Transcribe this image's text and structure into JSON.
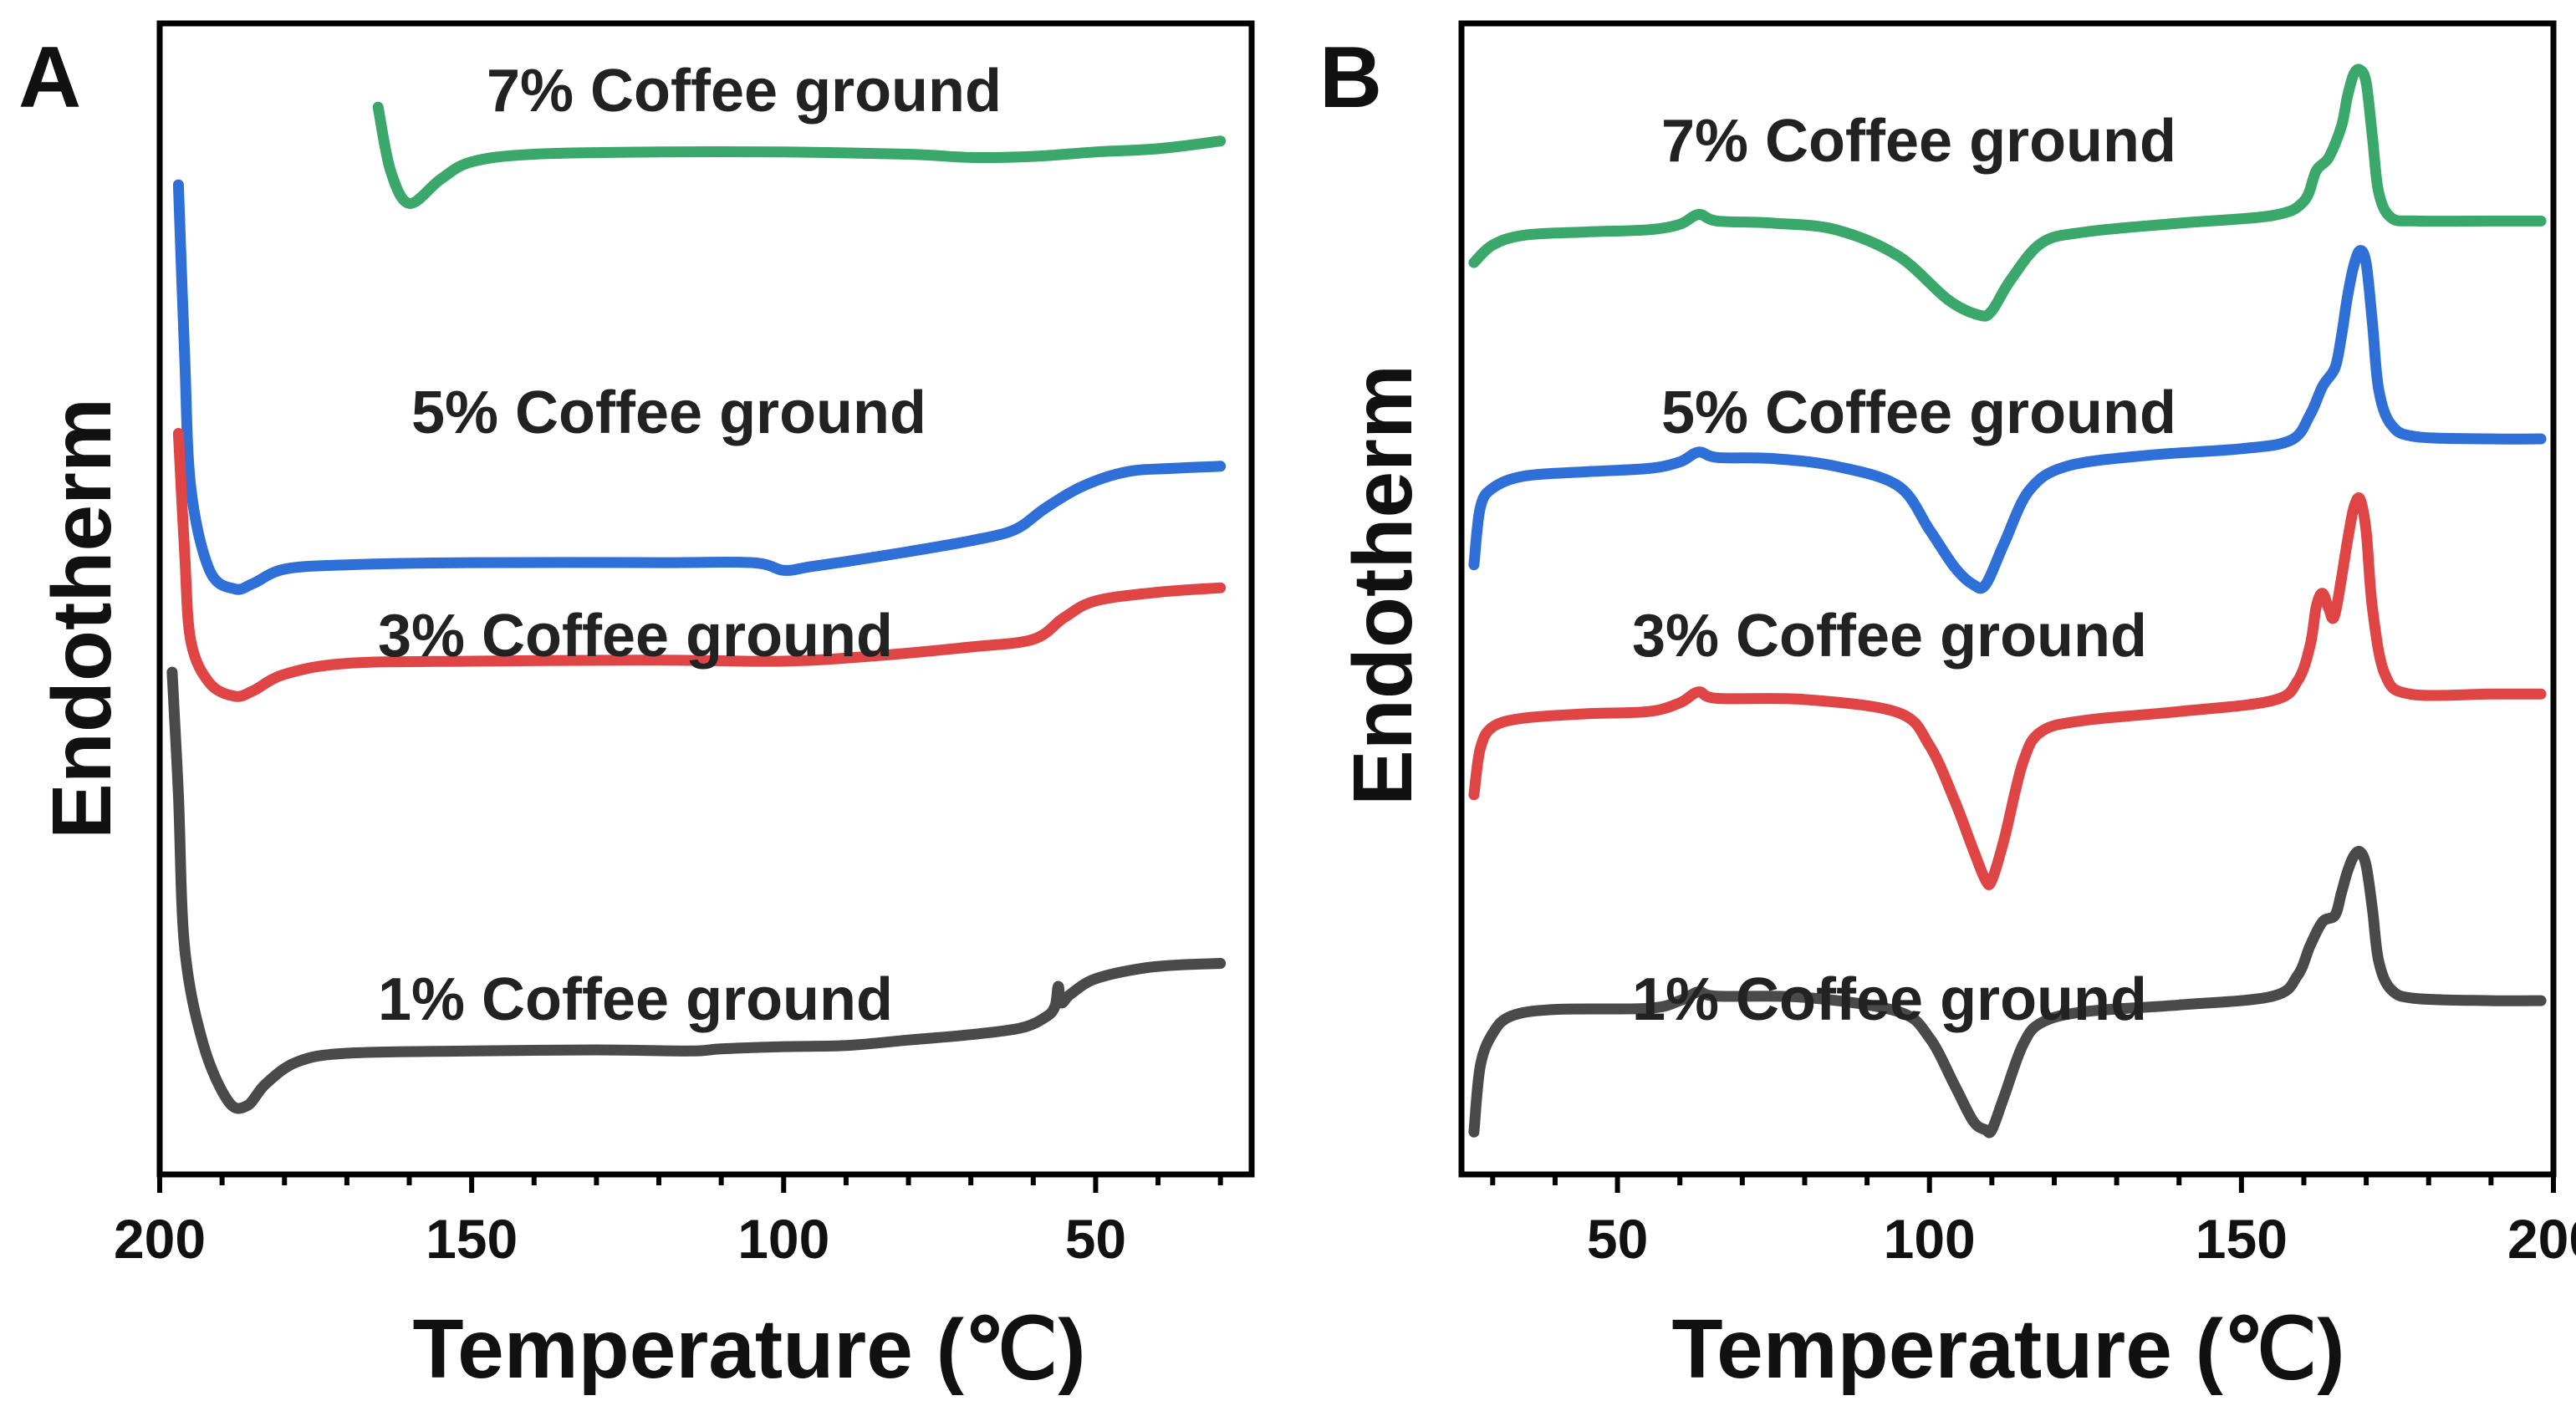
{
  "chart_data": [
    {
      "type": "line",
      "panel": "A",
      "xlabel": "Temperature (℃)",
      "ylabel": "Endotherm",
      "xlim": [
        200,
        25
      ],
      "ylim": [
        0,
        10
      ],
      "x_ticks": [
        200,
        150,
        100,
        50
      ],
      "series": [
        {
          "name": "7% Coffee ground",
          "color": "#3aa86b",
          "points": [
            [
              165,
              9.48
            ],
            [
              163,
              8.9
            ],
            [
              160,
              8.6
            ],
            [
              155,
              8.82
            ],
            [
              150,
              8.98
            ],
            [
              140,
              9.05
            ],
            [
              120,
              9.07
            ],
            [
              100,
              9.07
            ],
            [
              80,
              9.05
            ],
            [
              70,
              9.02
            ],
            [
              60,
              9.03
            ],
            [
              50,
              9.07
            ],
            [
              40,
              9.1
            ],
            [
              30,
              9.17
            ]
          ]
        },
        {
          "name": "5% Coffee ground",
          "color": "#2e6fd8",
          "points": [
            [
              197,
              8.77
            ],
            [
              196,
              7.2
            ],
            [
              195,
              6.0
            ],
            [
              192,
              5.25
            ],
            [
              188,
              5.08
            ],
            [
              185,
              5.13
            ],
            [
              180,
              5.26
            ],
            [
              170,
              5.3
            ],
            [
              150,
              5.32
            ],
            [
              120,
              5.32
            ],
            [
              105,
              5.32
            ],
            [
              100,
              5.25
            ],
            [
              96,
              5.28
            ],
            [
              90,
              5.33
            ],
            [
              80,
              5.42
            ],
            [
              70,
              5.52
            ],
            [
              63,
              5.62
            ],
            [
              58,
              5.82
            ],
            [
              52,
              6.02
            ],
            [
              45,
              6.15
            ],
            [
              38,
              6.18
            ],
            [
              30,
              6.2
            ]
          ]
        },
        {
          "name": "3% Coffee ground",
          "color": "#e04545",
          "points": [
            [
              197,
              6.5
            ],
            [
              196,
              5.4
            ],
            [
              195,
              4.6
            ],
            [
              192,
              4.22
            ],
            [
              188,
              4.1
            ],
            [
              185,
              4.15
            ],
            [
              180,
              4.3
            ],
            [
              170,
              4.4
            ],
            [
              150,
              4.42
            ],
            [
              120,
              4.43
            ],
            [
              100,
              4.42
            ],
            [
              85,
              4.47
            ],
            [
              70,
              4.55
            ],
            [
              60,
              4.62
            ],
            [
              55,
              4.82
            ],
            [
              50,
              4.97
            ],
            [
              40,
              5.05
            ],
            [
              30,
              5.09
            ]
          ]
        },
        {
          "name": "1% Coffee ground",
          "color": "#4a4a4a",
          "points": [
            [
              198,
              4.32
            ],
            [
              197,
              3.2
            ],
            [
              196,
              1.8
            ],
            [
              193,
              0.92
            ],
            [
              189,
              0.4
            ],
            [
              186,
              0.36
            ],
            [
              183,
              0.56
            ],
            [
              178,
              0.76
            ],
            [
              170,
              0.84
            ],
            [
              150,
              0.86
            ],
            [
              130,
              0.87
            ],
            [
              115,
              0.86
            ],
            [
              110,
              0.88
            ],
            [
              100,
              0.9
            ],
            [
              90,
              0.91
            ],
            [
              80,
              0.96
            ],
            [
              70,
              1.01
            ],
            [
              62,
              1.07
            ],
            [
              58,
              1.17
            ],
            [
              56.5,
              1.27
            ],
            [
              56,
              1.45
            ],
            [
              55.5,
              1.3
            ],
            [
              54,
              1.38
            ],
            [
              50,
              1.52
            ],
            [
              42,
              1.62
            ],
            [
              35,
              1.65
            ],
            [
              30,
              1.66
            ]
          ]
        }
      ]
    },
    {
      "type": "line",
      "panel": "B",
      "xlabel": "Temperature (℃)",
      "ylabel": "Endotherm",
      "xlim": [
        25,
        200
      ],
      "ylim": [
        0,
        10
      ],
      "x_ticks": [
        50,
        100,
        150,
        200
      ],
      "series": [
        {
          "name": "7% Coffee ground",
          "color": "#3aa86b",
          "points": [
            [
              27,
              8.06
            ],
            [
              30,
              8.22
            ],
            [
              35,
              8.31
            ],
            [
              45,
              8.34
            ],
            [
              55,
              8.36
            ],
            [
              60,
              8.41
            ],
            [
              63,
              8.5
            ],
            [
              66,
              8.44
            ],
            [
              75,
              8.42
            ],
            [
              85,
              8.36
            ],
            [
              95,
              8.12
            ],
            [
              103,
              7.72
            ],
            [
              108,
              7.58
            ],
            [
              110,
              7.62
            ],
            [
              113,
              7.9
            ],
            [
              118,
              8.24
            ],
            [
              125,
              8.34
            ],
            [
              140,
              8.42
            ],
            [
              155,
              8.49
            ],
            [
              160,
              8.62
            ],
            [
              162,
              8.9
            ],
            [
              164,
              9.02
            ],
            [
              166,
              9.3
            ],
            [
              167,
              9.58
            ],
            [
              168,
              9.78
            ],
            [
              169,
              9.82
            ],
            [
              170,
              9.7
            ],
            [
              171,
              9.2
            ],
            [
              172,
              8.7
            ],
            [
              174,
              8.47
            ],
            [
              178,
              8.44
            ],
            [
              190,
              8.44
            ],
            [
              198,
              8.44
            ]
          ]
        },
        {
          "name": "5% Coffee ground",
          "color": "#2e6fd8",
          "points": [
            [
              27,
              5.3
            ],
            [
              28,
              5.82
            ],
            [
              30,
              6.0
            ],
            [
              35,
              6.11
            ],
            [
              45,
              6.15
            ],
            [
              55,
              6.18
            ],
            [
              60,
              6.24
            ],
            [
              63,
              6.33
            ],
            [
              66,
              6.28
            ],
            [
              75,
              6.27
            ],
            [
              85,
              6.2
            ],
            [
              95,
              6.02
            ],
            [
              100,
              5.62
            ],
            [
              104,
              5.28
            ],
            [
              107,
              5.12
            ],
            [
              109,
              5.12
            ],
            [
              112,
              5.5
            ],
            [
              116,
              5.98
            ],
            [
              122,
              6.2
            ],
            [
              135,
              6.3
            ],
            [
              150,
              6.36
            ],
            [
              158,
              6.44
            ],
            [
              161,
              6.67
            ],
            [
              163,
              6.93
            ],
            [
              165,
              7.1
            ],
            [
              166,
              7.38
            ],
            [
              167,
              7.75
            ],
            [
              168,
              8.03
            ],
            [
              169,
              8.17
            ],
            [
              170,
              8.05
            ],
            [
              171,
              7.5
            ],
            [
              172,
              6.9
            ],
            [
              174,
              6.58
            ],
            [
              178,
              6.47
            ],
            [
              190,
              6.45
            ],
            [
              198,
              6.45
            ]
          ]
        },
        {
          "name": "3% Coffee ground",
          "color": "#e04545",
          "points": [
            [
              27,
              3.2
            ],
            [
              28,
              3.62
            ],
            [
              30,
              3.82
            ],
            [
              35,
              3.9
            ],
            [
              45,
              3.94
            ],
            [
              55,
              3.96
            ],
            [
              60,
              4.04
            ],
            [
              63,
              4.14
            ],
            [
              66,
              4.08
            ],
            [
              80,
              4.07
            ],
            [
              95,
              3.95
            ],
            [
              100,
              3.65
            ],
            [
              104,
              3.15
            ],
            [
              107,
              2.7
            ],
            [
              109,
              2.42
            ],
            [
              110,
              2.42
            ],
            [
              112,
              2.8
            ],
            [
              115,
              3.5
            ],
            [
              118,
              3.78
            ],
            [
              125,
              3.88
            ],
            [
              140,
              3.96
            ],
            [
              155,
              4.06
            ],
            [
              159,
              4.24
            ],
            [
              161,
              4.56
            ],
            [
              162,
              4.92
            ],
            [
              163,
              5.04
            ],
            [
              164,
              4.9
            ],
            [
              165,
              4.85
            ],
            [
              167,
              5.52
            ],
            [
              168,
              5.82
            ],
            [
              169,
              5.9
            ],
            [
              170,
              5.6
            ],
            [
              171,
              4.9
            ],
            [
              173,
              4.3
            ],
            [
              177,
              4.12
            ],
            [
              190,
              4.12
            ],
            [
              198,
              4.12
            ]
          ]
        },
        {
          "name": "1% Coffee ground",
          "color": "#4a4a4a",
          "points": [
            [
              27,
              0.12
            ],
            [
              28,
              0.72
            ],
            [
              30,
              1.02
            ],
            [
              33,
              1.18
            ],
            [
              40,
              1.24
            ],
            [
              55,
              1.25
            ],
            [
              60,
              1.32
            ],
            [
              63,
              1.4
            ],
            [
              66,
              1.36
            ],
            [
              80,
              1.35
            ],
            [
              95,
              1.22
            ],
            [
              100,
              0.98
            ],
            [
              104,
              0.55
            ],
            [
              107,
              0.22
            ],
            [
              109,
              0.14
            ],
            [
              110,
              0.14
            ],
            [
              112,
              0.45
            ],
            [
              115,
              0.92
            ],
            [
              118,
              1.12
            ],
            [
              125,
              1.22
            ],
            [
              140,
              1.28
            ],
            [
              155,
              1.36
            ],
            [
              159,
              1.55
            ],
            [
              161,
              1.82
            ],
            [
              163,
              2.04
            ],
            [
              165,
              2.1
            ],
            [
              166,
              2.3
            ],
            [
              167,
              2.5
            ],
            [
              168,
              2.64
            ],
            [
              169,
              2.68
            ],
            [
              170,
              2.55
            ],
            [
              171,
              2.15
            ],
            [
              172,
              1.68
            ],
            [
              174,
              1.42
            ],
            [
              178,
              1.34
            ],
            [
              190,
              1.32
            ],
            [
              198,
              1.32
            ]
          ]
        }
      ]
    }
  ]
}
